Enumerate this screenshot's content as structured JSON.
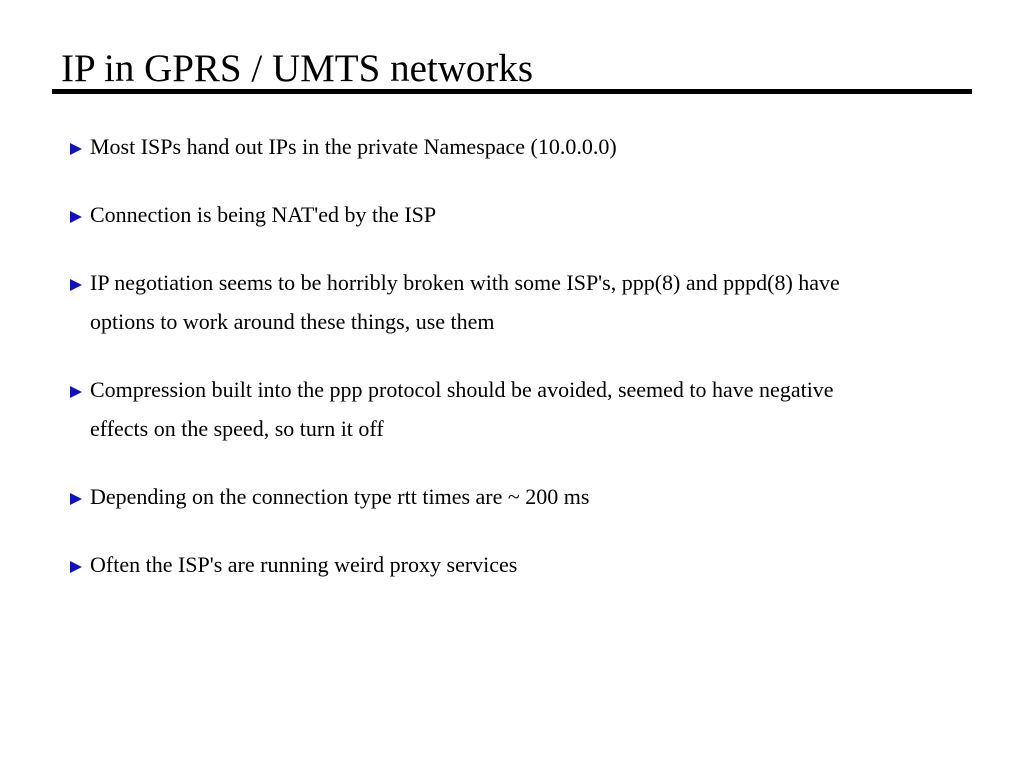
{
  "header": {
    "title": "IP in GPRS / UMTS networks"
  },
  "bullets": [
    {
      "lines": [
        "Most ISPs hand out IPs in the private Namespace (10.0.0.0)"
      ]
    },
    {
      "lines": [
        "Connection is being NAT'ed by the ISP"
      ]
    },
    {
      "lines": [
        "IP negotiation seems to be horribly broken with some ISP's, ppp(8) and pppd(8) have",
        "options to work around these things, use them"
      ]
    },
    {
      "lines": [
        "Compression built into the ppp protocol should be avoided, seemed to have negative",
        "effects on the speed, so turn it off"
      ]
    },
    {
      "lines": [
        "Depending on the connection type rtt times are ~ 200 ms"
      ]
    },
    {
      "lines": [
        "Often the ISP's are running weird proxy services"
      ]
    }
  ]
}
